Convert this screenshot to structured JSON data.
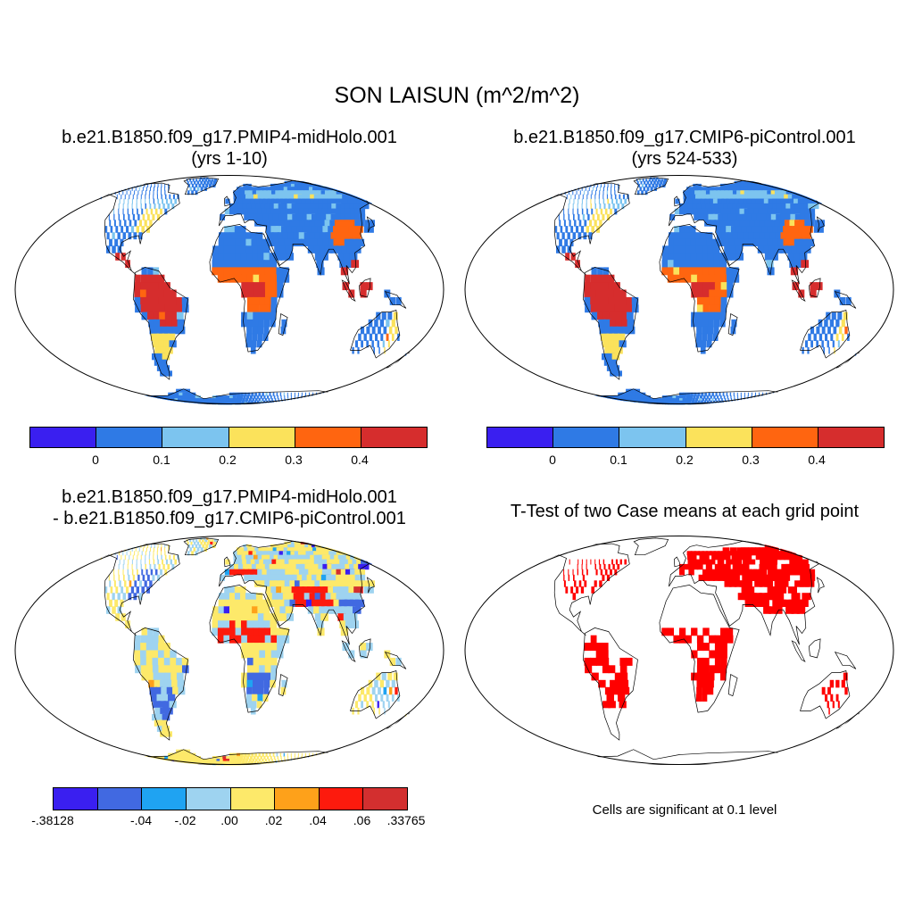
{
  "title": "SON LAISUN (m^2/m^2)",
  "panels": {
    "case1": {
      "line1": "b.e21.B1850.f09_g17.PMIP4-midHolo.001",
      "line2": "(yrs 1-10)"
    },
    "case2": {
      "line1": "b.e21.B1850.f09_g17.CMIP6-piControl.001",
      "line2": "(yrs 524-533)"
    },
    "diff": {
      "line1": "b.e21.B1850.f09_g17.PMIP4-midHolo.001",
      "line2": "- b.e21.B1850.f09_g17.CMIP6-piControl.001"
    },
    "ttest": {
      "line1": "T-Test of two Case means at each grid point",
      "note": "Cells are significant at 0.1 level"
    }
  },
  "colorbars": {
    "mean": {
      "colors": [
        "#3a1ff0",
        "#2f7ae5",
        "#7cc4ef",
        "#fbe25b",
        "#ff6510",
        "#d62d2d"
      ],
      "labels": [
        "0",
        "0.1",
        "0.2",
        "0.3",
        "0.4"
      ]
    },
    "diff": {
      "colors": [
        "#3a1ff0",
        "#4169e1",
        "#1fa3f2",
        "#9ed3f0",
        "#fde96a",
        "#fea11a",
        "#fd1a0d",
        "#d32f2f"
      ],
      "labels": [
        "-.38128",
        "-.04",
        "-.02",
        ".00",
        ".02",
        ".04",
        ".06",
        ".33765"
      ]
    }
  },
  "significance_color": "#ff0000"
}
